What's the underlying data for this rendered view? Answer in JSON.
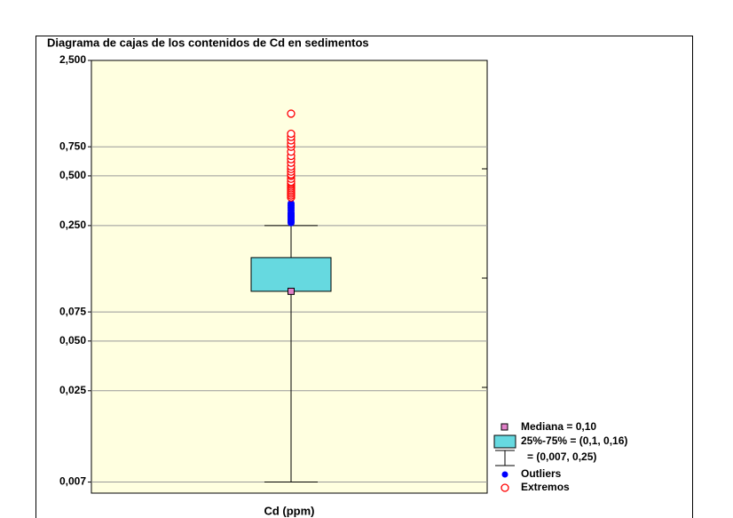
{
  "chart_data": {
    "type": "box",
    "title": "Diagrama de cajas de los contenidos de Cd en sedimentos",
    "xlabel": "Cd (ppm)",
    "log_y": true,
    "ylim": [
      0.006,
      2.5
    ],
    "yticks": [
      {
        "value": 2.5,
        "label": "2,500"
      },
      {
        "value": 0.75,
        "label": "0,750"
      },
      {
        "value": 0.5,
        "label": "0,500"
      },
      {
        "value": 0.25,
        "label": "0,250"
      },
      {
        "value": 0.075,
        "label": "0,075"
      },
      {
        "value": 0.05,
        "label": "0,050"
      },
      {
        "value": 0.025,
        "label": "0,025"
      },
      {
        "value": 0.007,
        "label": "0,007"
      }
    ],
    "grid": true,
    "box": {
      "median": 0.1,
      "q1": 0.1,
      "q3": 0.16,
      "whisker_low": 0.007,
      "whisker_high": 0.25,
      "box_color": "#66d9e0",
      "median_color": "#e080c8",
      "outlier_color": "#0000ff",
      "extreme_color": "#ff0000",
      "outliers": [
        0.26,
        0.265,
        0.27,
        0.275,
        0.28,
        0.285,
        0.29,
        0.295,
        0.3,
        0.31,
        0.32,
        0.33,
        0.34
      ],
      "extremes": [
        0.37,
        0.38,
        0.39,
        0.4,
        0.41,
        0.42,
        0.43,
        0.44,
        0.45,
        0.46,
        0.48,
        0.5,
        0.51,
        0.53,
        0.55,
        0.57,
        0.6,
        0.63,
        0.66,
        0.7,
        0.75,
        0.78,
        0.82,
        0.86,
        0.9,
        1.19
      ]
    },
    "legend": {
      "median": "Mediana = 0,10",
      "box": "25%-75% = (0,1, 0,16)",
      "whisker": "= (0,007, 0,25)",
      "outliers": "Outliers",
      "extremes": "Extremos"
    }
  }
}
